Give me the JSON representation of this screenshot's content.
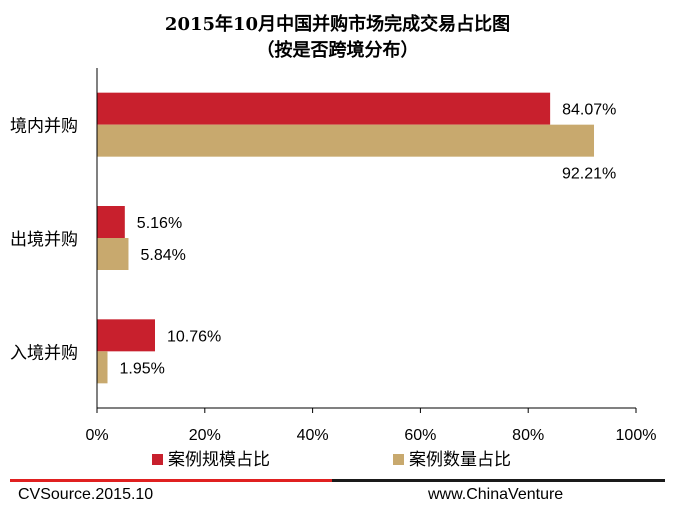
{
  "chart_data": {
    "type": "bar",
    "orientation": "horizontal",
    "title": "2015年10月中国并购市场完成交易占比图",
    "subtitle": "（按是否跨境分布）",
    "categories": [
      "境内并购",
      "出境并购",
      "入境并购"
    ],
    "series": [
      {
        "name": "案例规模占比",
        "values": [
          84.07,
          5.16,
          10.76
        ],
        "labels": [
          "84.07%",
          "5.16%",
          "10.76%"
        ],
        "color": "#c8202d"
      },
      {
        "name": "案例数量占比",
        "values": [
          92.21,
          5.84,
          1.95
        ],
        "labels": [
          "92.21%",
          "5.84%",
          "1.95%"
        ],
        "color": "#c8a96e"
      }
    ],
    "xlim": [
      0,
      100
    ],
    "xticks": [
      "0%",
      "20%",
      "40%",
      "60%",
      "80%",
      "100%"
    ],
    "grid": false,
    "legend_position": "bottom"
  },
  "footer": {
    "source": "CVSource.2015.10",
    "website": "www.ChinaVenture"
  },
  "colors": {
    "accent_red": "#e02020",
    "dark_line": "#1a1a1a"
  }
}
